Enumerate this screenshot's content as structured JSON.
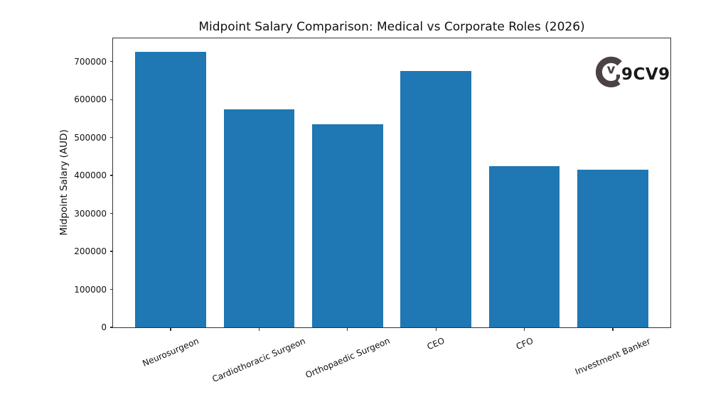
{
  "chart_data": {
    "type": "bar",
    "title": "Midpoint Salary Comparison: Medical vs Corporate Roles (2026)",
    "ylabel": "Midpoint Salary (AUD)",
    "xlabel": "",
    "categories": [
      "Neurosurgeon",
      "Cardiothoracic Surgeon",
      "Orthopaedic Surgeon",
      "CEO",
      "CFO",
      "Investment Banker"
    ],
    "values": [
      725000,
      575000,
      535000,
      675000,
      425000,
      415000
    ],
    "yticks": [
      0,
      100000,
      200000,
      300000,
      400000,
      500000,
      600000,
      700000
    ],
    "ylim": [
      0,
      761250
    ],
    "bar_color": "#1f77b4",
    "axis_color": "#333333",
    "grid": false,
    "legend": "none",
    "x_tick_rotation_deg": 23
  },
  "watermark": {
    "text": "9CV9",
    "icon": "9cv9-circle-v-logo-icon",
    "color": "#4a4243"
  }
}
